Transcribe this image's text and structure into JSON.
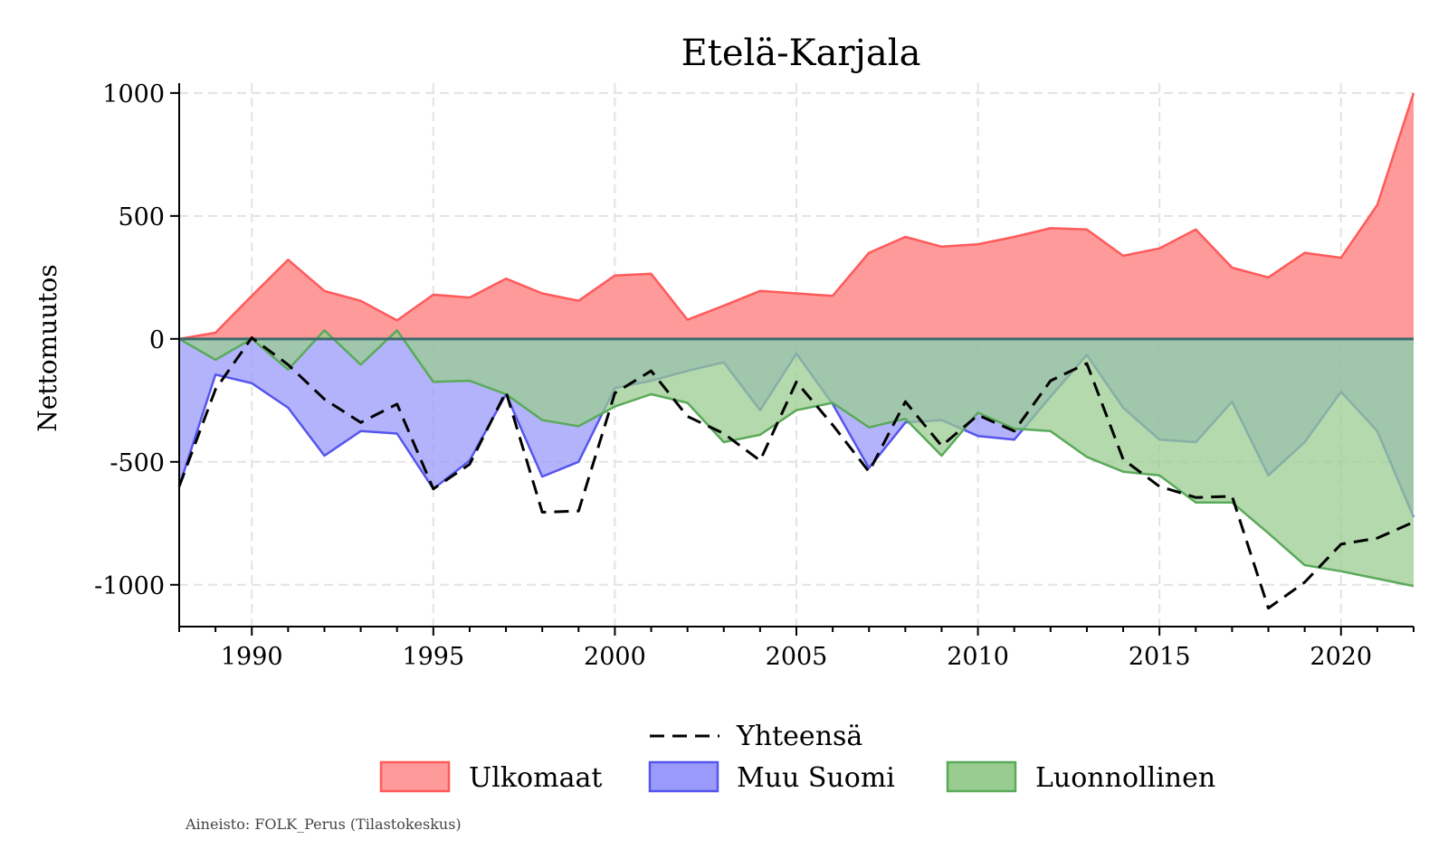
{
  "chart_data": {
    "type": "area",
    "title": "Etelä-Karjala",
    "ylabel": "Nettomuutos",
    "xlabel": "",
    "xlim": [
      1988,
      2022
    ],
    "ylim": [
      -1170,
      1040
    ],
    "x_ticks": [
      1990,
      1995,
      2000,
      2005,
      2010,
      2015,
      2020
    ],
    "y_ticks": [
      1000,
      500,
      0,
      -500,
      -1000
    ],
    "grid": true,
    "legend_position": "bottom",
    "x": [
      1988,
      1989,
      1990,
      1991,
      1992,
      1993,
      1994,
      1995,
      1996,
      1997,
      1998,
      1999,
      2000,
      2001,
      2002,
      2003,
      2004,
      2005,
      2006,
      2007,
      2008,
      2009,
      2010,
      2011,
      2012,
      2013,
      2014,
      2015,
      2016,
      2017,
      2018,
      2019,
      2020,
      2021,
      2022
    ],
    "series": [
      {
        "name": "Ulkomaat",
        "kind": "area",
        "color": "#ff5a5a",
        "fill": "#ff9a9a",
        "values": [
          0,
          25,
          175,
          322,
          195,
          155,
          75,
          180,
          168,
          245,
          185,
          155,
          258,
          265,
          78,
          135,
          195,
          185,
          175,
          350,
          415,
          375,
          385,
          415,
          450,
          445,
          338,
          368,
          445,
          290,
          250,
          350,
          330,
          545,
          1000
        ]
      },
      {
        "name": "Muu Suomi",
        "kind": "area",
        "color": "#5555ee",
        "fill": "#9a9afa",
        "values": [
          -600,
          -145,
          -180,
          -280,
          -475,
          -375,
          -385,
          -610,
          -495,
          -225,
          -560,
          -500,
          -200,
          -170,
          -130,
          -95,
          -290,
          -60,
          -265,
          -525,
          -340,
          -330,
          -395,
          -410,
          -235,
          -65,
          -280,
          -410,
          -420,
          -255,
          -555,
          -420,
          -215,
          -375,
          -725
        ]
      },
      {
        "name": "Luonnollinen",
        "kind": "area",
        "color": "#5aaa5a",
        "fill": "#99cc90",
        "values": [
          0,
          -85,
          0,
          -125,
          35,
          -105,
          35,
          -175,
          -170,
          -225,
          -330,
          -355,
          -275,
          -225,
          -260,
          -420,
          -390,
          -290,
          -260,
          -360,
          -325,
          -475,
          -300,
          -365,
          -375,
          -480,
          -540,
          -555,
          -665,
          -665,
          -790,
          -920,
          -945,
          -975,
          -1005
        ]
      },
      {
        "name": "Yhteensä",
        "kind": "line",
        "color": "#000000",
        "values": [
          -600,
          -205,
          5,
          -105,
          -245,
          -340,
          -265,
          -610,
          -510,
          -215,
          -705,
          -700,
          -220,
          -130,
          -315,
          -385,
          -495,
          -175,
          -350,
          -540,
          -255,
          -435,
          -310,
          -375,
          -170,
          -100,
          -490,
          -600,
          -645,
          -640,
          -1095,
          -990,
          -835,
          -810,
          -745
        ]
      }
    ]
  },
  "legend": {
    "total_label": "Yhteensä",
    "items": [
      "Ulkomaat",
      "Muu Suomi",
      "Luonnollinen"
    ]
  },
  "source": "Aineisto: FOLK_Perus (Tilastokeskus)"
}
